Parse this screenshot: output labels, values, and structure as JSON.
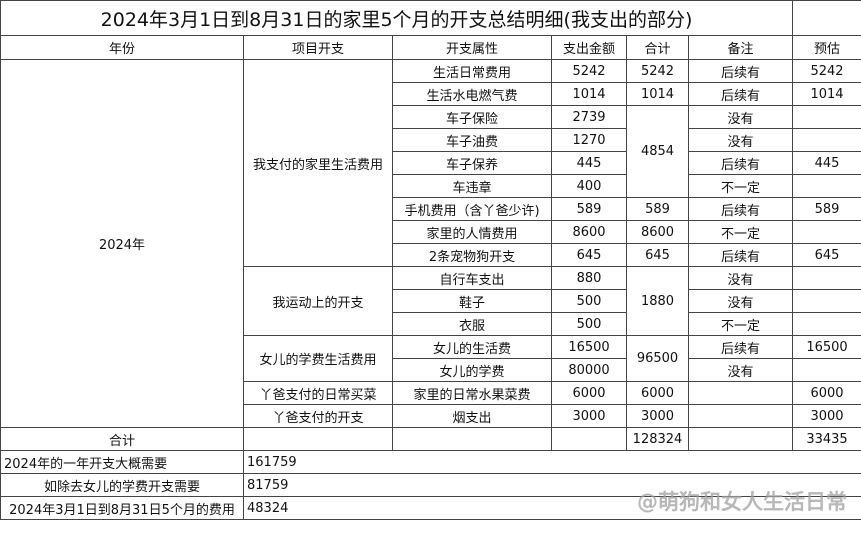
{
  "title": "2024年3月1日到8月31日的家里5个月的开支总结明细(我支出的部分)",
  "headers": [
    "年份",
    "项目开支",
    "开支属性",
    "支出金额",
    "合计",
    "备注",
    "预估"
  ],
  "year": "2024年",
  "groups": [
    "我支付的家里生活费用",
    "我运动上的开支",
    "女儿的学费生活费用",
    "丫爸支付的日常买菜",
    "丫爸支付的开支"
  ],
  "rows": [
    {
      "item": "生活日常费用",
      "amount": "5242",
      "note": "后续有",
      "est": "5242"
    },
    {
      "item": "生活水电燃气费",
      "amount": "1014",
      "note": "后续有",
      "est": "1014"
    },
    {
      "item": "车子保险",
      "amount": "2739",
      "note": "没有",
      "est": ""
    },
    {
      "item": "车子油费",
      "amount": "1270",
      "note": "没有",
      "est": ""
    },
    {
      "item": "车子保养",
      "amount": "445",
      "note": "后续有",
      "est": "445"
    },
    {
      "item": "车违章",
      "amount": "400",
      "note": "不一定",
      "est": ""
    },
    {
      "item": "手机费用（含丫爸少许)",
      "amount": "589",
      "note": "后续有",
      "est": "589"
    },
    {
      "item": "家里的人情费用",
      "amount": "8600",
      "note": "不一定",
      "est": ""
    },
    {
      "item": "2条宠物狗开支",
      "amount": "645",
      "note": "后续有",
      "est": "645"
    },
    {
      "item": "自行车支出",
      "amount": "880",
      "note": "没有",
      "est": ""
    },
    {
      "item": "鞋子",
      "amount": "500",
      "note": "没有",
      "est": ""
    },
    {
      "item": "衣服",
      "amount": "500",
      "note": "不一定",
      "est": ""
    },
    {
      "item": "女儿的生活费",
      "amount": "16500",
      "note": "后续有",
      "est": "16500"
    },
    {
      "item": "女儿的学费",
      "amount": "80000",
      "note": "没有",
      "est": ""
    },
    {
      "item": "家里的日常水果菜费",
      "amount": "6000",
      "note": "",
      "est": "6000"
    },
    {
      "item": "烟支出",
      "amount": "3000",
      "note": "",
      "est": "3000"
    }
  ],
  "subtotals": [
    "5242",
    "1014",
    "4854",
    "589",
    "8600",
    "645",
    "1880",
    "96500",
    "6000",
    "3000"
  ],
  "total": {
    "label": "合计",
    "sum": "128324",
    "est": "33435"
  },
  "summary": [
    {
      "label": "2024年的一年开支大概需要",
      "value": "161759"
    },
    {
      "label": "如除去女儿的学费开支需要",
      "value": "81759"
    },
    {
      "label": "2024年3月1日到8月31日5个月的费用",
      "value": "48324"
    }
  ],
  "watermark": "@萌狗和女人生活日常"
}
